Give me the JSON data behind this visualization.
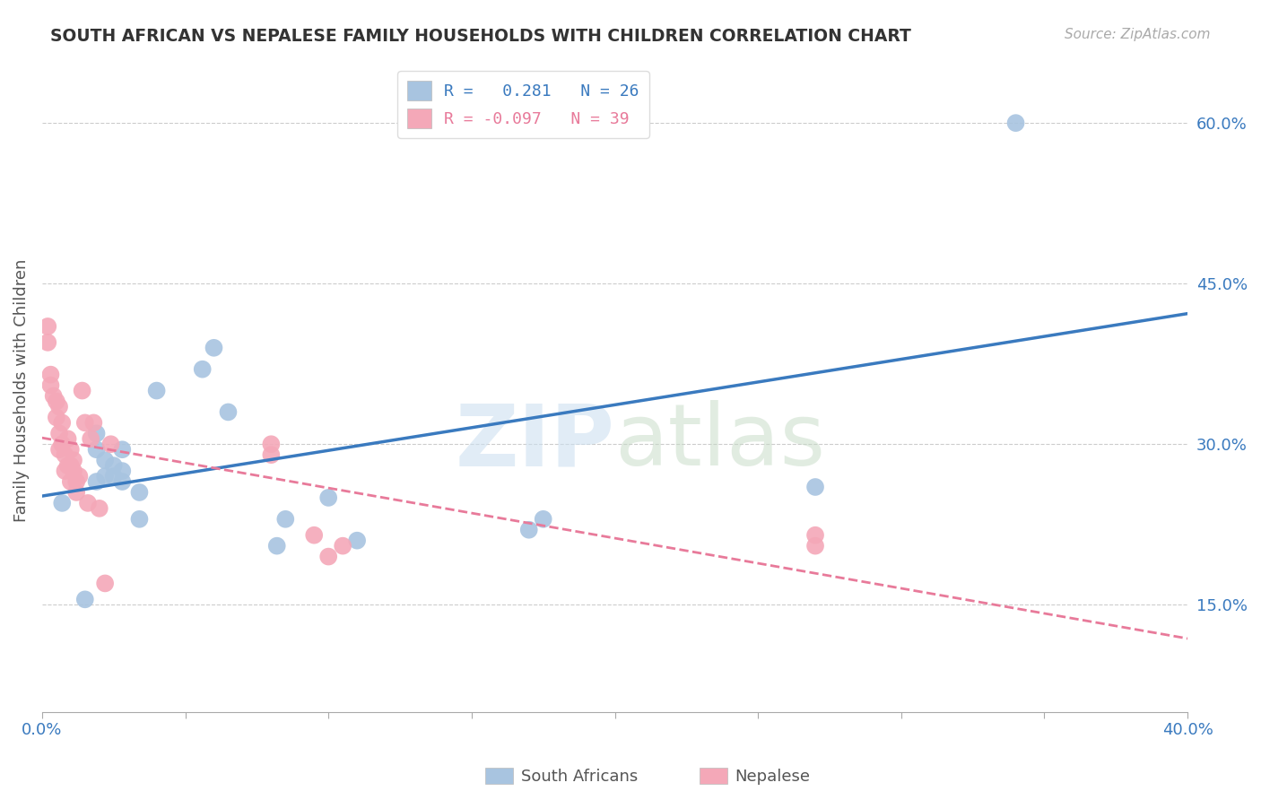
{
  "title": "SOUTH AFRICAN VS NEPALESE FAMILY HOUSEHOLDS WITH CHILDREN CORRELATION CHART",
  "source": "Source: ZipAtlas.com",
  "ylabel": "Family Households with Children",
  "legend_r_sa": "0.281",
  "legend_n_sa": "26",
  "legend_r_nep": "-0.097",
  "legend_n_nep": "39",
  "sa_color": "#a8c4e0",
  "nep_color": "#f4a8b8",
  "sa_line_color": "#3a7abf",
  "nep_line_color": "#e87a9a",
  "background_color": "#ffffff",
  "xlim": [
    0.0,
    0.4
  ],
  "ylim": [
    0.05,
    0.65
  ],
  "south_africans_x": [
    0.007,
    0.015,
    0.019,
    0.019,
    0.019,
    0.022,
    0.022,
    0.025,
    0.025,
    0.028,
    0.028,
    0.028,
    0.034,
    0.034,
    0.04,
    0.056,
    0.06,
    0.065,
    0.082,
    0.085,
    0.1,
    0.11,
    0.17,
    0.175,
    0.27,
    0.34
  ],
  "south_africans_y": [
    0.245,
    0.155,
    0.265,
    0.295,
    0.31,
    0.27,
    0.285,
    0.27,
    0.28,
    0.265,
    0.275,
    0.295,
    0.23,
    0.255,
    0.35,
    0.37,
    0.39,
    0.33,
    0.205,
    0.23,
    0.25,
    0.21,
    0.22,
    0.23,
    0.26,
    0.6
  ],
  "nepalese_x": [
    0.002,
    0.002,
    0.003,
    0.003,
    0.004,
    0.005,
    0.005,
    0.006,
    0.006,
    0.006,
    0.007,
    0.007,
    0.008,
    0.008,
    0.009,
    0.009,
    0.01,
    0.01,
    0.01,
    0.011,
    0.011,
    0.012,
    0.012,
    0.013,
    0.014,
    0.015,
    0.016,
    0.017,
    0.018,
    0.02,
    0.022,
    0.024,
    0.08,
    0.08,
    0.095,
    0.1,
    0.105,
    0.27,
    0.27
  ],
  "nepalese_y": [
    0.41,
    0.395,
    0.355,
    0.365,
    0.345,
    0.34,
    0.325,
    0.335,
    0.31,
    0.295,
    0.3,
    0.32,
    0.29,
    0.275,
    0.28,
    0.305,
    0.265,
    0.28,
    0.295,
    0.275,
    0.285,
    0.265,
    0.255,
    0.27,
    0.35,
    0.32,
    0.245,
    0.305,
    0.32,
    0.24,
    0.17,
    0.3,
    0.3,
    0.29,
    0.215,
    0.195,
    0.205,
    0.205,
    0.215
  ]
}
